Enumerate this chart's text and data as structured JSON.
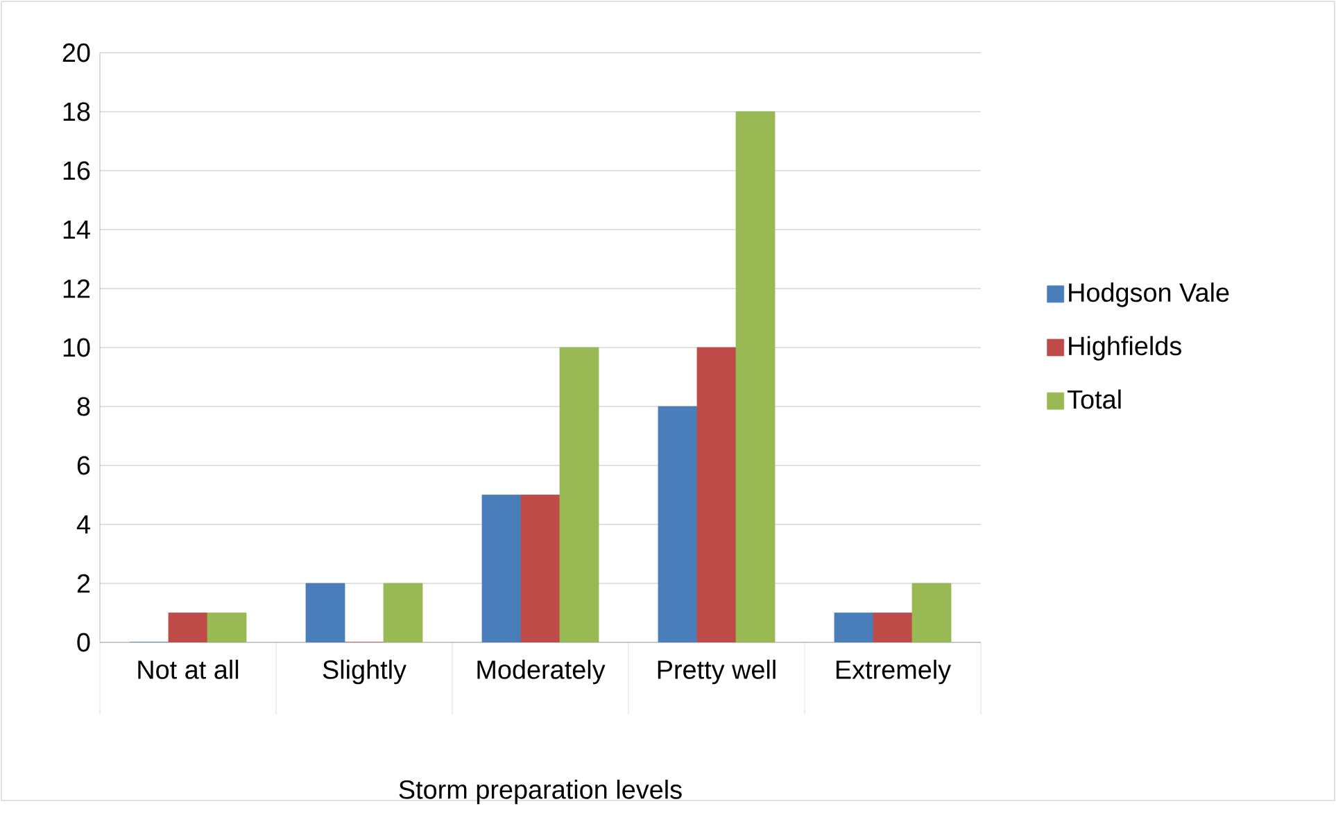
{
  "chart_data": {
    "type": "bar",
    "xlabel": "Storm preparation levels",
    "categories": [
      "Not at all",
      "Slightly",
      "Moderately",
      "Pretty well",
      "Extremely"
    ],
    "series": [
      {
        "name": "Hodgson Vale",
        "color": "#4a7ebb",
        "values": [
          0,
          2,
          5,
          8,
          1
        ]
      },
      {
        "name": "Highfields",
        "color": "#be4b48",
        "values": [
          1,
          0,
          5,
          10,
          1
        ]
      },
      {
        "name": "Total",
        "color": "#98b954",
        "values": [
          1,
          2,
          10,
          18,
          2
        ]
      }
    ],
    "ylim": [
      0,
      20
    ],
    "yticks": [
      0,
      2,
      4,
      6,
      8,
      10,
      12,
      14,
      16,
      18,
      20
    ],
    "grid": "y",
    "legend": "right"
  }
}
